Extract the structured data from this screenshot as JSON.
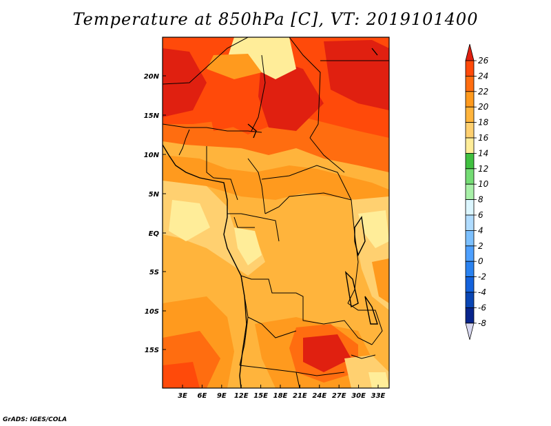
{
  "title": "Temperature at 850hPa [C], VT: 2019101400",
  "credit": "GrADS: IGES/COLA",
  "map": {
    "lat_ticks": [
      "20N",
      "15N",
      "10N",
      "5N",
      "EQ",
      "5S",
      "10S",
      "15S"
    ],
    "lon_ticks": [
      "3E",
      "6E",
      "9E",
      "12E",
      "15E",
      "18E",
      "21E",
      "24E",
      "27E",
      "30E",
      "33E"
    ]
  },
  "colorbar": {
    "labels": [
      "26",
      "24",
      "22",
      "20",
      "18",
      "16",
      "14",
      "12",
      "10",
      "8",
      "6",
      "4",
      "2",
      "0",
      "-2",
      "-4",
      "-6",
      "-8"
    ],
    "colors": [
      "#e02010",
      "#ff4a0a",
      "#ff6d10",
      "#ff9a1e",
      "#ffb43c",
      "#ffd070",
      "#ffed99",
      "#40c040",
      "#74dc74",
      "#a8f0a8",
      "#dcf6ff",
      "#b0dcff",
      "#7cc0ff",
      "#4ea0ff",
      "#2a82f0",
      "#1462dc",
      "#0a46b4",
      "#08248c",
      "#000064",
      "#d8d8f0"
    ]
  }
}
